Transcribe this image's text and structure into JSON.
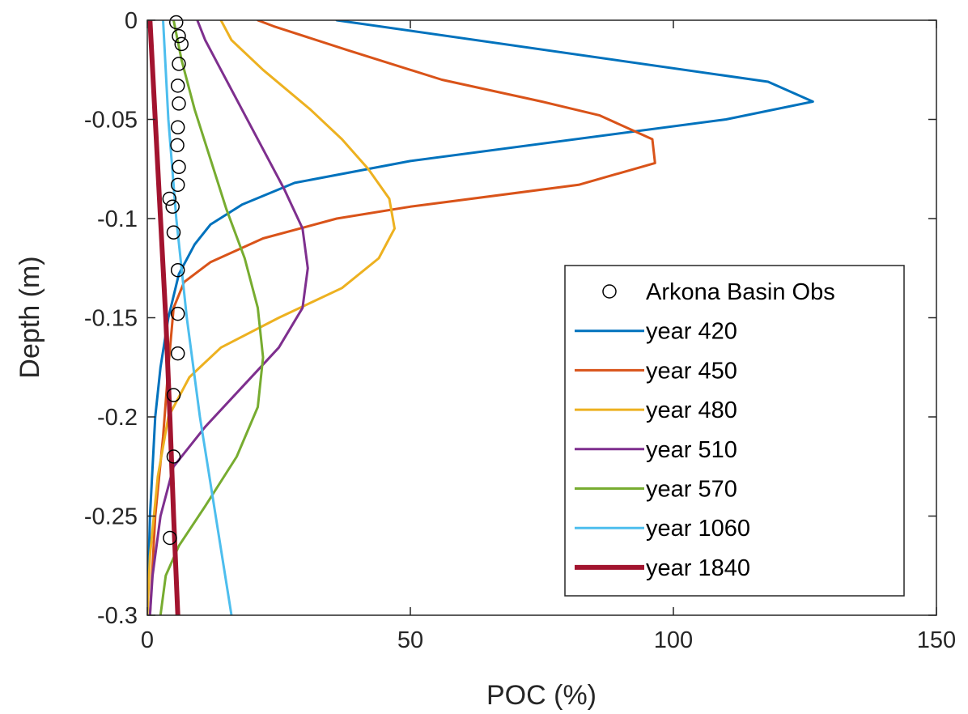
{
  "chart_data": {
    "type": "line",
    "xlabel": "POC (%)",
    "ylabel": "Depth (m)",
    "xlim": [
      0,
      150
    ],
    "ylim": [
      -0.3,
      0
    ],
    "xticks": [
      0,
      50,
      100,
      150
    ],
    "yticks": [
      0,
      -0.05,
      -0.1,
      -0.15,
      -0.2,
      -0.25,
      -0.3
    ],
    "xtick_labels": [
      "0",
      "50",
      "100",
      "150"
    ],
    "ytick_labels": [
      "0",
      "-0.05",
      "-0.1",
      "-0.15",
      "-0.2",
      "-0.25",
      "-0.3"
    ],
    "grid": false,
    "legend_position": "lower-right",
    "observations": {
      "name": "Arkona Basin Obs",
      "marker": "circle",
      "color": "#000000",
      "points": [
        {
          "x": 5.5,
          "y": -0.001
        },
        {
          "x": 6.0,
          "y": -0.008
        },
        {
          "x": 6.5,
          "y": -0.012
        },
        {
          "x": 6.0,
          "y": -0.022
        },
        {
          "x": 5.8,
          "y": -0.033
        },
        {
          "x": 6.0,
          "y": -0.042
        },
        {
          "x": 5.8,
          "y": -0.054
        },
        {
          "x": 5.7,
          "y": -0.063
        },
        {
          "x": 6.0,
          "y": -0.074
        },
        {
          "x": 5.8,
          "y": -0.083
        },
        {
          "x": 4.2,
          "y": -0.09
        },
        {
          "x": 4.8,
          "y": -0.094
        },
        {
          "x": 5.0,
          "y": -0.107
        },
        {
          "x": 5.8,
          "y": -0.126
        },
        {
          "x": 5.8,
          "y": -0.148
        },
        {
          "x": 5.8,
          "y": -0.168
        },
        {
          "x": 5.0,
          "y": -0.189
        },
        {
          "x": 5.0,
          "y": -0.22
        },
        {
          "x": 4.3,
          "y": -0.261
        }
      ]
    },
    "series": [
      {
        "name": "year 420",
        "color": "#0072BD",
        "width": 3,
        "points": [
          {
            "x": 36,
            "y": 0
          },
          {
            "x": 118,
            "y": -0.031
          },
          {
            "x": 126.5,
            "y": -0.041
          },
          {
            "x": 110,
            "y": -0.05
          },
          {
            "x": 50,
            "y": -0.071
          },
          {
            "x": 28,
            "y": -0.082
          },
          {
            "x": 18,
            "y": -0.093
          },
          {
            "x": 12,
            "y": -0.103
          },
          {
            "x": 9,
            "y": -0.113
          },
          {
            "x": 6,
            "y": -0.128
          },
          {
            "x": 4,
            "y": -0.15
          },
          {
            "x": 2.5,
            "y": -0.175
          },
          {
            "x": 1.5,
            "y": -0.2
          },
          {
            "x": 0.5,
            "y": -0.25
          },
          {
            "x": 0,
            "y": -0.3
          }
        ]
      },
      {
        "name": "year 450",
        "color": "#D95319",
        "width": 3,
        "points": [
          {
            "x": 21,
            "y": 0
          },
          {
            "x": 24,
            "y": -0.003
          },
          {
            "x": 38,
            "y": -0.015
          },
          {
            "x": 56,
            "y": -0.03
          },
          {
            "x": 75,
            "y": -0.041
          },
          {
            "x": 86,
            "y": -0.048
          },
          {
            "x": 96,
            "y": -0.06
          },
          {
            "x": 96.5,
            "y": -0.072
          },
          {
            "x": 82,
            "y": -0.083
          },
          {
            "x": 50,
            "y": -0.094
          },
          {
            "x": 36,
            "y": -0.1
          },
          {
            "x": 22,
            "y": -0.11
          },
          {
            "x": 12,
            "y": -0.122
          },
          {
            "x": 7,
            "y": -0.132
          },
          {
            "x": 5,
            "y": -0.145
          },
          {
            "x": 4,
            "y": -0.175
          },
          {
            "x": 3,
            "y": -0.21
          },
          {
            "x": 1.5,
            "y": -0.25
          },
          {
            "x": 0.5,
            "y": -0.3
          }
        ]
      },
      {
        "name": "year 480",
        "color": "#EDB120",
        "width": 3,
        "points": [
          {
            "x": 14,
            "y": 0
          },
          {
            "x": 16,
            "y": -0.01
          },
          {
            "x": 22,
            "y": -0.025
          },
          {
            "x": 31,
            "y": -0.045
          },
          {
            "x": 37,
            "y": -0.06
          },
          {
            "x": 42,
            "y": -0.075
          },
          {
            "x": 46,
            "y": -0.09
          },
          {
            "x": 47,
            "y": -0.105
          },
          {
            "x": 44,
            "y": -0.12
          },
          {
            "x": 37,
            "y": -0.135
          },
          {
            "x": 25,
            "y": -0.15
          },
          {
            "x": 14,
            "y": -0.165
          },
          {
            "x": 8,
            "y": -0.18
          },
          {
            "x": 4,
            "y": -0.2
          },
          {
            "x": 2,
            "y": -0.23
          },
          {
            "x": 0.5,
            "y": -0.27
          },
          {
            "x": 0,
            "y": -0.3
          }
        ]
      },
      {
        "name": "year 510",
        "color": "#7E2F8E",
        "width": 3,
        "points": [
          {
            "x": 9.5,
            "y": 0
          },
          {
            "x": 11,
            "y": -0.01
          },
          {
            "x": 14,
            "y": -0.025
          },
          {
            "x": 18,
            "y": -0.045
          },
          {
            "x": 22,
            "y": -0.065
          },
          {
            "x": 26,
            "y": -0.085
          },
          {
            "x": 29.5,
            "y": -0.105
          },
          {
            "x": 30.5,
            "y": -0.125
          },
          {
            "x": 29.5,
            "y": -0.145
          },
          {
            "x": 25,
            "y": -0.165
          },
          {
            "x": 18,
            "y": -0.185
          },
          {
            "x": 11,
            "y": -0.205
          },
          {
            "x": 5,
            "y": -0.225
          },
          {
            "x": 2.5,
            "y": -0.25
          },
          {
            "x": 1,
            "y": -0.28
          },
          {
            "x": 0.5,
            "y": -0.3
          }
        ]
      },
      {
        "name": "year 570",
        "color": "#77AC30",
        "width": 3,
        "points": [
          {
            "x": 5,
            "y": 0
          },
          {
            "x": 6.5,
            "y": -0.02
          },
          {
            "x": 9,
            "y": -0.045
          },
          {
            "x": 12,
            "y": -0.07
          },
          {
            "x": 15,
            "y": -0.095
          },
          {
            "x": 18.5,
            "y": -0.12
          },
          {
            "x": 21,
            "y": -0.145
          },
          {
            "x": 22,
            "y": -0.17
          },
          {
            "x": 21,
            "y": -0.195
          },
          {
            "x": 17,
            "y": -0.22
          },
          {
            "x": 11,
            "y": -0.245
          },
          {
            "x": 6,
            "y": -0.265
          },
          {
            "x": 3.5,
            "y": -0.28
          },
          {
            "x": 2.5,
            "y": -0.3
          }
        ]
      },
      {
        "name": "year 1060",
        "color": "#4DBEEE",
        "width": 3,
        "points": [
          {
            "x": 3,
            "y": 0
          },
          {
            "x": 4,
            "y": -0.05
          },
          {
            "x": 5.5,
            "y": -0.1
          },
          {
            "x": 7.5,
            "y": -0.15
          },
          {
            "x": 10,
            "y": -0.2
          },
          {
            "x": 13,
            "y": -0.25
          },
          {
            "x": 16,
            "y": -0.3
          }
        ]
      },
      {
        "name": "year 1840",
        "color": "#A2142F",
        "width": 6,
        "points": [
          {
            "x": 0.5,
            "y": 0
          },
          {
            "x": 1.5,
            "y": -0.05
          },
          {
            "x": 2.5,
            "y": -0.1
          },
          {
            "x": 3.5,
            "y": -0.15
          },
          {
            "x": 4.3,
            "y": -0.2
          },
          {
            "x": 5,
            "y": -0.25
          },
          {
            "x": 5.8,
            "y": -0.3
          }
        ]
      }
    ]
  }
}
